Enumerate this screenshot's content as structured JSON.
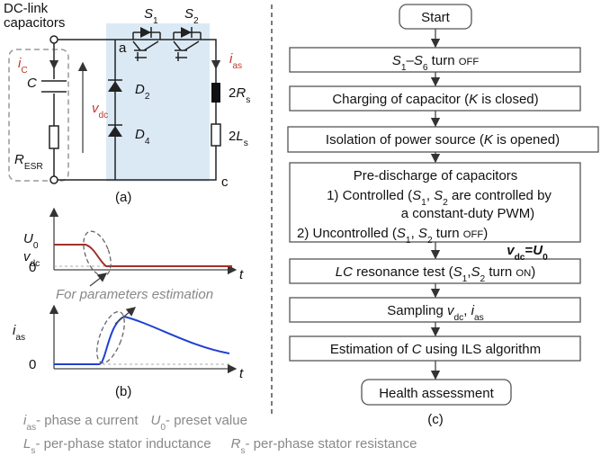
{
  "circuit": {
    "title": [
      "DC-link",
      "capacitors"
    ],
    "iC": [
      "i",
      "C"
    ],
    "C": "C",
    "R_esr": [
      "R",
      "ESR"
    ],
    "vdc": [
      "v",
      "dc"
    ],
    "node_a": "a",
    "node_c": "c",
    "D2": [
      "D",
      "2"
    ],
    "D4": [
      "D",
      "4"
    ],
    "S1": [
      "S",
      "1"
    ],
    "S2": [
      "S",
      "2"
    ],
    "ias": [
      "i",
      "as"
    ],
    "Rs": [
      "2",
      "R",
      "s"
    ],
    "Ls": [
      "2",
      "L",
      "s"
    ],
    "caption": "(a)"
  },
  "waveforms": {
    "U0": [
      "U",
      "0"
    ],
    "vdc": [
      "v",
      "dc"
    ],
    "zero_top": "0",
    "t_top": "t",
    "annotation": "For parameters estimation",
    "ias": [
      "i",
      "as"
    ],
    "zero_bottom": "0",
    "t_bottom": "t",
    "caption": "(b)"
  },
  "flowchart": {
    "start": "Start",
    "steps": [
      [
        "S",
        "1",
        "–",
        "S",
        "6",
        " turn ",
        "OFF"
      ],
      [
        "Charging of capacitor (",
        "K",
        " is closed)"
      ],
      [
        "Isolation of power source (",
        "K",
        " is opened)"
      ],
      {
        "title": "Pre-discharge of capacitors",
        "controlled": [
          "1) Controlled (",
          "S",
          "1",
          ", ",
          "S",
          "2",
          " are controlled by"
        ],
        "controlled_cont": "a constant-duty PWM)",
        "uncontrolled": [
          "2) Uncontrolled (",
          "S",
          "1",
          ", ",
          "S",
          "2",
          " turn ",
          "OFF",
          ")"
        ]
      },
      [
        "LC",
        " resonance test (",
        "S",
        "1",
        ",",
        "S",
        "2",
        " turn ",
        "ON",
        ")"
      ],
      [
        "Sampling ",
        "v",
        "dc",
        ", ",
        "i",
        "as"
      ],
      [
        "Estimation of ",
        "C",
        " using ILS algorithm"
      ]
    ],
    "condition": [
      "v",
      "dc",
      "=",
      "U",
      "0"
    ],
    "end": "Health assessment",
    "caption": "(c)"
  },
  "legend": [
    [
      "i",
      "as",
      "- phase a current",
      "U",
      "0",
      "- preset value"
    ],
    [
      "L",
      "s",
      "- per-phase stator inductance",
      "R",
      "s",
      "- per-phase stator resistance"
    ]
  ]
}
